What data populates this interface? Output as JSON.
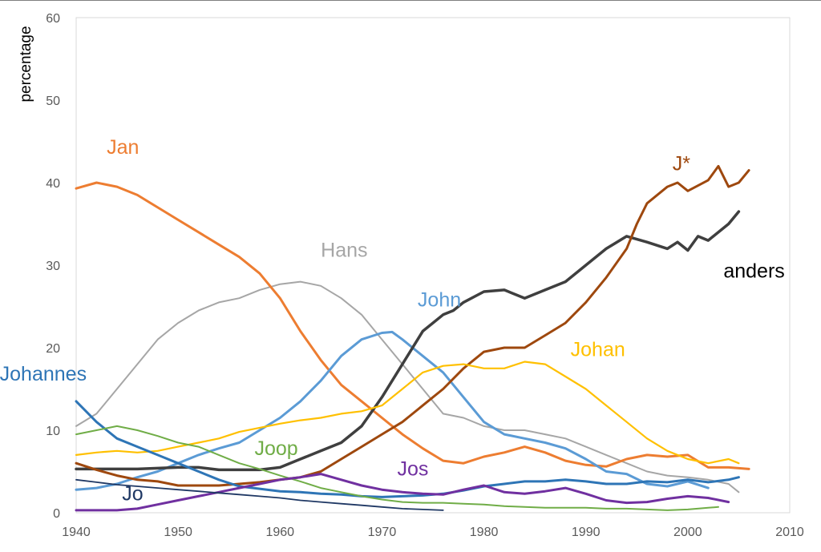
{
  "chart_data": {
    "type": "line",
    "title": "",
    "xlabel": "",
    "ylabel": "percentage",
    "xlim": [
      1940,
      2010
    ],
    "ylim": [
      0,
      60
    ],
    "x_ticks": [
      "1940",
      "1950",
      "1960",
      "1970",
      "1980",
      "1990",
      "2000",
      "2010"
    ],
    "y_ticks": [
      "0",
      "10",
      "20",
      "30",
      "40",
      "50",
      "60"
    ],
    "grid": false,
    "legend": "inline labels",
    "series": [
      {
        "name": "Hans",
        "color": "#a6a6a6",
        "width": 2,
        "label_at": [
          1964,
          31
        ],
        "x": [
          1940,
          1942,
          1944,
          1946,
          1948,
          1950,
          1952,
          1954,
          1956,
          1958,
          1960,
          1962,
          1964,
          1966,
          1968,
          1970,
          1972,
          1974,
          1976,
          1978,
          1980,
          1982,
          1984,
          1986,
          1988,
          1990,
          1992,
          1994,
          1996,
          1998,
          2000,
          2002,
          2004,
          2005
        ],
        "y": [
          10.5,
          12,
          15,
          18,
          21,
          23,
          24.5,
          25.5,
          26,
          27,
          27.7,
          28,
          27.5,
          26,
          24,
          21,
          18,
          15,
          12,
          11.5,
          10.5,
          10,
          10,
          9.5,
          9,
          8,
          7,
          6,
          5,
          4.5,
          4.3,
          4,
          3.5,
          2.5
        ]
      },
      {
        "name": "Jan",
        "color": "#ed7d31",
        "width": 3,
        "label_at": [
          1943,
          43.5
        ],
        "x": [
          1940,
          1942,
          1944,
          1946,
          1948,
          1950,
          1952,
          1954,
          1956,
          1958,
          1960,
          1962,
          1964,
          1966,
          1968,
          1970,
          1972,
          1974,
          1976,
          1978,
          1980,
          1982,
          1984,
          1986,
          1988,
          1990,
          1992,
          1994,
          1996,
          1998,
          2000,
          2002,
          2004,
          2006
        ],
        "y": [
          39.3,
          40,
          39.5,
          38.5,
          37,
          35.5,
          34,
          32.5,
          31,
          29,
          26,
          22,
          18.5,
          15.5,
          13.5,
          11.5,
          9.5,
          7.8,
          6.3,
          6,
          6.8,
          7.3,
          8,
          7.3,
          6.3,
          5.8,
          5.6,
          6.5,
          7,
          6.8,
          7,
          5.5,
          5.5,
          5.3
        ]
      },
      {
        "name": "John",
        "color": "#5b9bd5",
        "width": 3,
        "label_at": [
          1973.5,
          25
        ],
        "x": [
          1940,
          1942,
          1944,
          1946,
          1948,
          1950,
          1952,
          1954,
          1956,
          1958,
          1960,
          1962,
          1964,
          1966,
          1968,
          1970,
          1971,
          1972,
          1974,
          1976,
          1978,
          1980,
          1982,
          1984,
          1986,
          1988,
          1990,
          1992,
          1994,
          1996,
          1998,
          2000,
          2002
        ],
        "y": [
          2.8,
          3,
          3.5,
          4.3,
          5,
          6,
          7,
          7.8,
          8.5,
          10,
          11.5,
          13.5,
          16,
          19,
          21,
          21.8,
          21.9,
          21,
          19,
          17,
          14,
          11,
          9.5,
          9,
          8.5,
          7.8,
          6.5,
          5,
          4.7,
          3.5,
          3.2,
          3.8,
          3
        ]
      },
      {
        "name": "anders",
        "color": "#3f3f3f",
        "width": 3.5,
        "label_at": [
          2003.5,
          28.5
        ],
        "x": [
          1940,
          1942,
          1944,
          1946,
          1948,
          1950,
          1952,
          1954,
          1956,
          1958,
          1960,
          1962,
          1964,
          1966,
          1968,
          1970,
          1972,
          1974,
          1976,
          1977,
          1978,
          1980,
          1982,
          1984,
          1986,
          1988,
          1990,
          1992,
          1994,
          1996,
          1998,
          1999,
          2000,
          2001,
          2002,
          2004,
          2005
        ],
        "y": [
          5.3,
          5.3,
          5.3,
          5.3,
          5.4,
          5.5,
          5.5,
          5.2,
          5.2,
          5.2,
          5.5,
          6.5,
          7.5,
          8.5,
          10.5,
          14,
          18,
          22,
          24,
          24.5,
          25.5,
          26.8,
          27,
          26,
          27,
          28,
          30,
          32,
          33.5,
          32.8,
          32,
          32.8,
          31.8,
          33.5,
          33,
          35,
          36.5
        ]
      },
      {
        "name": "J*",
        "color": "#9e480e",
        "width": 3,
        "label_at": [
          1998.5,
          41.5
        ],
        "x": [
          1940,
          1942,
          1944,
          1946,
          1948,
          1950,
          1952,
          1954,
          1956,
          1958,
          1960,
          1962,
          1964,
          1966,
          1968,
          1970,
          1972,
          1974,
          1976,
          1978,
          1980,
          1982,
          1984,
          1986,
          1988,
          1990,
          1992,
          1994,
          1995,
          1996,
          1998,
          1999,
          2000,
          2002,
          2003,
          2004,
          2005,
          2006
        ],
        "y": [
          6,
          5.2,
          4.5,
          4,
          3.8,
          3.3,
          3.3,
          3.3,
          3.5,
          3.7,
          4,
          4.3,
          5,
          6.5,
          8,
          9.5,
          11,
          13,
          15,
          17.5,
          19.5,
          20,
          20,
          21.5,
          23,
          25.5,
          28.5,
          32,
          35,
          37.5,
          39.5,
          40,
          39,
          40.3,
          42,
          39.5,
          40,
          41.5
        ]
      },
      {
        "name": "Johan",
        "color": "#ffc000",
        "width": 2.2,
        "label_at": [
          1988.5,
          19
        ],
        "x": [
          1940,
          1942,
          1944,
          1946,
          1948,
          1950,
          1952,
          1954,
          1956,
          1958,
          1960,
          1962,
          1964,
          1966,
          1968,
          1970,
          1972,
          1974,
          1976,
          1978,
          1980,
          1982,
          1984,
          1986,
          1988,
          1990,
          1992,
          1994,
          1996,
          1998,
          2000,
          2002,
          2004,
          2005
        ],
        "y": [
          7,
          7.3,
          7.5,
          7.3,
          7.5,
          8,
          8.5,
          9,
          9.8,
          10.3,
          10.8,
          11.2,
          11.5,
          12,
          12.3,
          13,
          15,
          17,
          17.8,
          18,
          17.5,
          17.5,
          18.3,
          18,
          16.5,
          15,
          13,
          11,
          9,
          7.5,
          6.5,
          6,
          6.5,
          6
        ]
      },
      {
        "name": "Johannes",
        "color": "#2e75b6",
        "width": 3,
        "label_at": [
          1932.5,
          16
        ],
        "x": [
          1940,
          1942,
          1943,
          1944,
          1946,
          1948,
          1950,
          1952,
          1954,
          1956,
          1958,
          1960,
          1962,
          1964,
          1966,
          1968,
          1970,
          1972,
          1974,
          1976,
          1978,
          1980,
          1982,
          1984,
          1986,
          1988,
          1990,
          1992,
          1994,
          1996,
          1998,
          2000,
          2002,
          2004,
          2005
        ],
        "y": [
          13.5,
          11,
          10,
          9,
          8,
          7,
          6,
          5,
          4,
          3.2,
          2.9,
          2.6,
          2.5,
          2.3,
          2.2,
          2,
          1.9,
          2,
          2.1,
          2.3,
          2.7,
          3.2,
          3.5,
          3.8,
          3.8,
          4,
          3.8,
          3.5,
          3.5,
          3.8,
          3.7,
          4,
          3.7,
          4,
          4.3
        ]
      },
      {
        "name": "Joop",
        "color": "#70ad47",
        "width": 2,
        "label_at": [
          1957.5,
          7
        ],
        "x": [
          1940,
          1942,
          1944,
          1946,
          1948,
          1950,
          1952,
          1954,
          1956,
          1958,
          1960,
          1962,
          1964,
          1966,
          1968,
          1970,
          1972,
          1974,
          1976,
          1978,
          1980,
          1982,
          1984,
          1986,
          1988,
          1990,
          1992,
          1994,
          1996,
          1998,
          2000,
          2002,
          2003
        ],
        "y": [
          9.5,
          10,
          10.5,
          10,
          9.3,
          8.5,
          8,
          7,
          6,
          5.3,
          4.5,
          3.8,
          3,
          2.5,
          2,
          1.6,
          1.3,
          1.2,
          1.2,
          1.1,
          1,
          0.8,
          0.7,
          0.6,
          0.6,
          0.6,
          0.5,
          0.5,
          0.4,
          0.3,
          0.4,
          0.6,
          0.7
        ]
      },
      {
        "name": "Jos",
        "color": "#7030a0",
        "width": 3,
        "label_at": [
          1971.5,
          4.5
        ],
        "x": [
          1940,
          1942,
          1944,
          1946,
          1948,
          1950,
          1952,
          1954,
          1956,
          1958,
          1960,
          1962,
          1964,
          1966,
          1968,
          1970,
          1972,
          1974,
          1976,
          1978,
          1980,
          1982,
          1984,
          1986,
          1988,
          1990,
          1992,
          1994,
          1996,
          1998,
          2000,
          2002,
          2004
        ],
        "y": [
          0.3,
          0.3,
          0.3,
          0.5,
          1,
          1.5,
          2,
          2.5,
          3,
          3.5,
          4,
          4.3,
          4.7,
          4,
          3.3,
          2.8,
          2.5,
          2.3,
          2.2,
          2.8,
          3.3,
          2.5,
          2.3,
          2.6,
          3,
          2.3,
          1.5,
          1.2,
          1.3,
          1.7,
          2,
          1.8,
          1.3
        ]
      },
      {
        "name": "Jo",
        "color": "#1f3864",
        "width": 1.8,
        "label_at": [
          1944.5,
          1.5
        ],
        "x": [
          1940,
          1942,
          1944,
          1946,
          1948,
          1950,
          1952,
          1954,
          1956,
          1958,
          1960,
          1962,
          1964,
          1966,
          1968,
          1970,
          1972,
          1974,
          1976
        ],
        "y": [
          4,
          3.7,
          3.4,
          3.2,
          3,
          2.8,
          2.6,
          2.4,
          2.2,
          2,
          1.8,
          1.5,
          1.3,
          1.1,
          0.9,
          0.7,
          0.5,
          0.4,
          0.3
        ]
      }
    ]
  }
}
